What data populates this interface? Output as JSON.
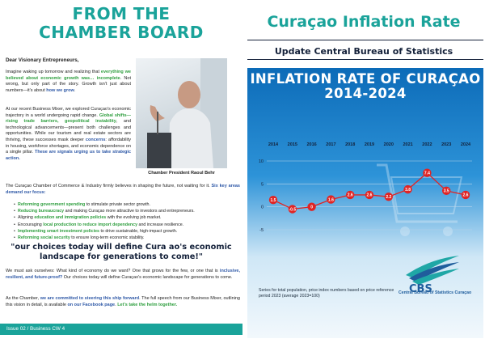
{
  "left": {
    "title_line1": "FROM THE",
    "title_line2": "CHAMBER BOARD",
    "greeting": "Dear Visionary Entrepreneurs,",
    "para1": {
      "t1": "Imagine waking up tomorrow and realizing that ",
      "g1": "everything we believed about economic growth was… incomplete",
      "t2": ". Not wrong, but only part of the story. Growth isn't just about numbers—it's about ",
      "b1": "how we grow",
      "t3": "."
    },
    "para2": {
      "t1": "At our recent Business Mixer, we explored Curaçao's economic trajectory in a world undergoing rapid change. ",
      "g1": "Global shifts—rising trade barriers, geopolitical instability",
      "t2": ", and technological advancements—present both challenges and opportunities. While our tourism and real estate sectors are thriving, these successes mask deeper ",
      "b1": "concerns",
      "t3": ": affordability in housing, workforce shortages, and economic dependence on a single pillar. ",
      "b2": "These are signals urging us to take strategic action."
    },
    "para3": {
      "t1": "The Curaçao Chamber of Commerce & Industry firmly believes in shaping the future, not waiting for it. ",
      "b1": "Six key areas demand our focus:"
    },
    "bullets": [
      {
        "hl": "Reforming government spending",
        "rest": " to stimulate private sector growth.",
        "pre": ""
      },
      {
        "hl": "Reducing bureaucracy",
        "rest": " and making Curaçao more attractive to investors and entrepreneurs.",
        "pre": ""
      },
      {
        "hl": "education and immigration policies",
        "rest": " with the evolving job market.",
        "pre": "Aligning "
      },
      {
        "hl": "local production to reduce import dependency",
        "rest": " and increase resilience.",
        "pre": "Encouraging "
      },
      {
        "hl": "Implementing smart investment policies",
        "rest": " to drive sustainable, high-impact growth.",
        "pre": ""
      },
      {
        "hl": "Reforming social security",
        "rest": " to ensure long-term economic stability.",
        "pre": ""
      }
    ],
    "quote": "\"our choices today will define Cura  ao's economic landscape for generations to come!\"",
    "para4": {
      "t1": "We must ask ourselves: What kind of economy do we want? One that grows for the few, or one that is ",
      "b1": "inclusive, resilient, and future-proof?",
      "t2": " Our choices today will define Curaçao's economic landscape for generations to come."
    },
    "para5": {
      "t1": "As the Chamber, ",
      "b1": "we are committed to steering this ship forward",
      "t2": ". The full speech from our Business Mixer, outlining this vision in detail, is available ",
      "b2": "on our Facebook page",
      "t3": ". ",
      "g1": "Let's take the helm together."
    },
    "caption": "Chamber President Raoul Behr",
    "footer": "Issue 02 / Business CW 4",
    "accent": "#1aa39a"
  },
  "right": {
    "title": "Curaçao Inflation Rate",
    "subtitle": "Update Central Bureau of Statistics",
    "panel_title_line1": "INFLATION RATE OF CURAÇAO",
    "panel_title_line2": "2014-2024",
    "note": "Series for total population, price index numbers based on price reference period 2023 (average 2023=100)",
    "logo_text": "CBS",
    "logo_caption": "Central Bureau of Statistics Curaçao"
  },
  "chart_data": {
    "type": "line",
    "title": "INFLATION RATE OF CURAÇAO 2014-2024",
    "x": [
      "2014",
      "2015",
      "2016",
      "2017",
      "2018",
      "2019",
      "2020",
      "2021",
      "2022",
      "2023",
      "2024"
    ],
    "series": [
      {
        "values": [
          1.5,
          -0.5,
          0,
          1.6,
          2.6,
          2.6,
          2.2,
          3.8,
          7.4,
          3.5,
          2.6
        ],
        "labels": [
          "1.5",
          "-0.5",
          "0",
          "1.6",
          "2.6",
          "2.6",
          "2.2",
          "3.8",
          "7.4",
          "3.5",
          "2.6"
        ],
        "color": "#e02424"
      }
    ],
    "yticks": [
      10,
      5,
      0,
      -5
    ],
    "ylim": [
      -5,
      10
    ],
    "grid": true
  }
}
